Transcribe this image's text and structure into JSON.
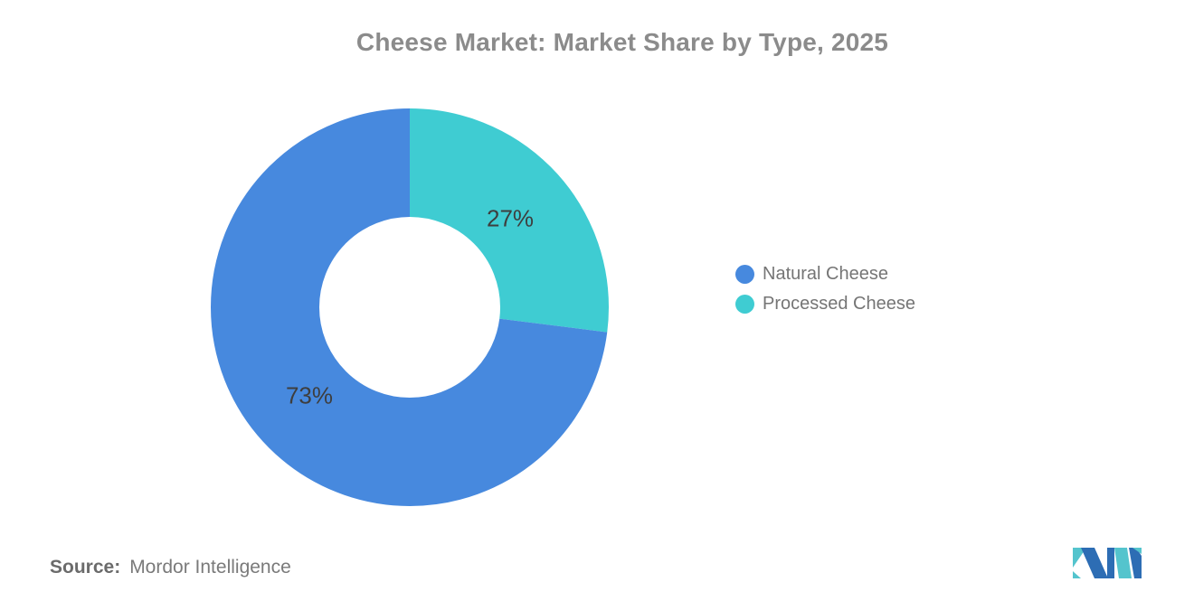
{
  "title": "Cheese Market: Market Share by Type, 2025",
  "colors": {
    "natural_blue": "#4789DE",
    "processed_teal": "#3FCCD2",
    "title_gray": "#8b8b8b",
    "label_dark": "#3e3e3e",
    "legend_gray": "#757575",
    "logo_blue": "#2D6DB4",
    "logo_teal": "#54C4CD"
  },
  "chart_data": {
    "type": "pie",
    "subtype": "donut",
    "title": "Cheese Market: Market Share by Type, 2025",
    "inner_radius_ratio": 0.45,
    "start_angle": "12 o'clock, clockwise, Processed Cheese slice first",
    "unit": "%",
    "categories": [
      "Natural Cheese",
      "Processed Cheese"
    ],
    "values": [
      73,
      27
    ],
    "slices": [
      {
        "name": "Natural Cheese",
        "value": 73,
        "label": "73%",
        "color": "#4789DE"
      },
      {
        "name": "Processed Cheese",
        "value": 27,
        "label": "27%",
        "color": "#3FCCD2"
      }
    ],
    "legend_position": "right"
  },
  "legend": {
    "items": [
      {
        "label": "Natural Cheese",
        "color": "#4789DE"
      },
      {
        "label": "Processed Cheese",
        "color": "#3FCCD2"
      }
    ]
  },
  "source": {
    "prefix": "Source:",
    "text": "Mordor Intelligence"
  },
  "logo": {
    "name": "mordor-intelligence-logo"
  }
}
